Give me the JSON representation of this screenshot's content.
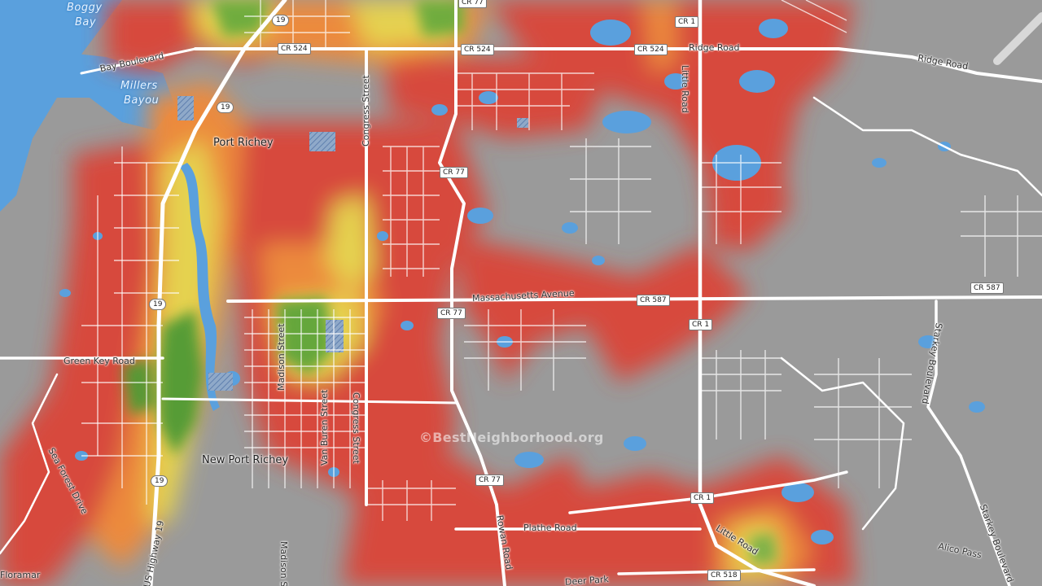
{
  "map": {
    "watermark": "©BestNeighborhood.org",
    "legend_colors": {
      "red": "#d9473a",
      "orange": "#ef8a3a",
      "yellow": "#e8d44d",
      "green": "#4f9a34",
      "water": "#5aa0dd",
      "land": "#9a9a9a",
      "road": "#ffffff"
    },
    "places": {
      "port_richey": "Port Richey",
      "new_port_richey": "New Port Richey"
    },
    "water_labels": {
      "boggy": "Boggy",
      "bay": "Bay",
      "millers": "Millers",
      "bayou": "Bayou"
    },
    "roads": {
      "bay_boulevard": "Bay Boulevard",
      "ridge_road_1": "Ridge Road",
      "ridge_road_2": "Ridge Road",
      "congress_street_1": "Congress Street",
      "congress_street_2": "Congress Street",
      "little_road_1": "Little Road",
      "little_road_2": "Little Road",
      "massachusetts_avenue": "Massachusetts Avenue",
      "madison_street_1": "Madison Street",
      "madison_street_2": "Madison S",
      "van_buren_street": "Van Buren Street",
      "green_key_road": "Green Key Road",
      "sea_forest_drive": "Sea Forest Drive",
      "us_highway_19": "US Highway 19",
      "rowan_road": "Rowan Road",
      "plathe_road": "Plathe Road",
      "starkey_boulevard_1": "Starkey Boulevard",
      "starkey_boulevard_2": "Starkey Boulevard",
      "alico_pass": "Alico Pass",
      "deer_park": "Deer Park",
      "floramar": "Floramar"
    },
    "shields": {
      "cr77_top": "CR 77",
      "cr1_top": "CR 1",
      "cr524_a": "CR 524",
      "cr524_b": "CR 524",
      "cr524_c": "CR 524",
      "r19_a": "19",
      "r19_b": "19",
      "r19_c": "19",
      "r19_d": "19",
      "cr77_b": "CR 77",
      "cr77_c": "CR 77",
      "cr77_d": "CR 77",
      "cr587_a": "CR 587",
      "cr587_b": "CR 587",
      "cr1_b": "CR 1",
      "cr1_c": "CR 1",
      "cr518": "CR 518"
    }
  }
}
